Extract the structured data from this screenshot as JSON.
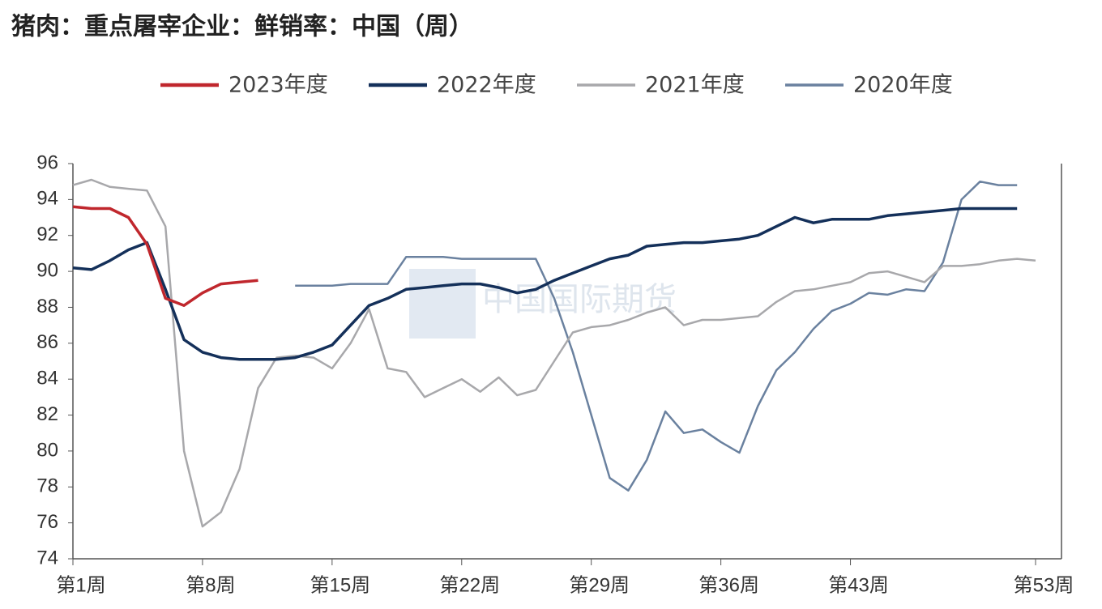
{
  "chart_data": {
    "type": "line",
    "title": "猪肉：重点屠宰企业：鲜销率：中国（周）",
    "watermark": "中国国际期货",
    "x": [
      1,
      2,
      3,
      4,
      5,
      6,
      7,
      8,
      9,
      10,
      11,
      12,
      13,
      14,
      15,
      16,
      17,
      18,
      19,
      20,
      21,
      22,
      23,
      24,
      25,
      26,
      27,
      28,
      29,
      30,
      31,
      32,
      33,
      34,
      35,
      36,
      37,
      38,
      39,
      40,
      41,
      42,
      43,
      44,
      45,
      46,
      47,
      48,
      49,
      50,
      51,
      52,
      53
    ],
    "xlim": [
      1,
      54.4
    ],
    "xticks": [
      {
        "value": 1,
        "label": "第1周"
      },
      {
        "value": 8,
        "label": "第8周"
      },
      {
        "value": 15,
        "label": "第15周"
      },
      {
        "value": 22,
        "label": "第22周"
      },
      {
        "value": 29,
        "label": "第29周"
      },
      {
        "value": 36,
        "label": "第36周"
      },
      {
        "value": 43,
        "label": "第43周"
      },
      {
        "value": 53,
        "label": "第53周"
      }
    ],
    "ylim": [
      74,
      96
    ],
    "yticks": [
      74,
      76,
      78,
      80,
      82,
      84,
      86,
      88,
      90,
      92,
      94,
      96
    ],
    "legend": "top",
    "series": [
      {
        "name": "2023年度",
        "color": "#c0272d",
        "width": 3.5,
        "values": [
          93.6,
          93.5,
          93.5,
          93.0,
          91.5,
          88.5,
          88.1,
          88.8,
          89.3,
          89.4,
          89.5,
          null,
          null,
          null,
          null,
          null,
          null,
          null,
          null,
          null,
          null,
          null,
          null,
          null,
          null,
          null,
          null,
          null,
          null,
          null,
          null,
          null,
          null,
          null,
          null,
          null,
          null,
          null,
          null,
          null,
          null,
          null,
          null,
          null,
          null,
          null,
          null,
          null,
          null,
          null,
          null,
          null,
          null
        ]
      },
      {
        "name": "2022年度",
        "color": "#14305a",
        "width": 3.5,
        "values": [
          90.2,
          90.1,
          90.6,
          91.2,
          91.6,
          89.0,
          86.2,
          85.5,
          85.2,
          85.1,
          85.1,
          85.1,
          85.2,
          85.5,
          85.9,
          87.0,
          88.1,
          88.5,
          89.0,
          89.1,
          89.2,
          89.3,
          89.3,
          89.1,
          88.8,
          89.0,
          89.5,
          89.9,
          90.3,
          90.7,
          90.9,
          91.4,
          91.5,
          91.6,
          91.6,
          91.7,
          91.8,
          92.0,
          92.5,
          93.0,
          92.7,
          92.9,
          92.9,
          92.9,
          93.1,
          93.2,
          93.3,
          93.4,
          93.5,
          93.5,
          93.5,
          93.5,
          null
        ]
      },
      {
        "name": "2021年度",
        "color": "#a8a8ab",
        "width": 2.5,
        "values": [
          94.8,
          95.1,
          94.7,
          94.6,
          94.5,
          92.5,
          80.0,
          75.8,
          76.6,
          79.0,
          83.5,
          85.2,
          85.3,
          85.2,
          84.6,
          86.0,
          87.9,
          84.6,
          84.4,
          83.0,
          83.5,
          84.0,
          83.3,
          84.1,
          83.1,
          83.4,
          85.0,
          86.6,
          86.9,
          87.0,
          87.3,
          87.7,
          88.0,
          87.0,
          87.3,
          87.3,
          87.4,
          87.5,
          88.3,
          88.9,
          89.0,
          89.2,
          89.4,
          89.9,
          90.0,
          89.7,
          89.4,
          90.3,
          90.3,
          90.4,
          90.6,
          90.7,
          90.6
        ]
      },
      {
        "name": "2020年度",
        "color": "#6a819f",
        "width": 2.5,
        "values": [
          null,
          null,
          null,
          null,
          null,
          null,
          null,
          null,
          null,
          null,
          null,
          null,
          89.2,
          89.2,
          89.2,
          89.3,
          89.3,
          89.3,
          90.8,
          90.8,
          90.8,
          90.7,
          90.7,
          90.7,
          90.7,
          90.7,
          88.5,
          85.5,
          82.0,
          78.5,
          77.8,
          79.5,
          82.2,
          81.0,
          81.2,
          80.5,
          79.9,
          82.5,
          84.5,
          85.5,
          86.8,
          87.8,
          88.2,
          88.8,
          88.7,
          89.0,
          88.9,
          90.5,
          94.0,
          95.0,
          94.8,
          94.8,
          null
        ]
      }
    ]
  }
}
